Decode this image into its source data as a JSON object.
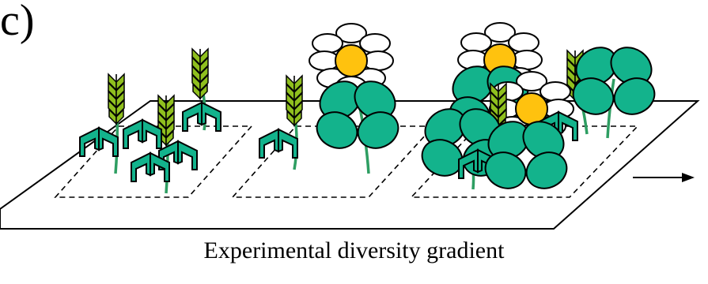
{
  "figure": {
    "panel_label": "c)",
    "caption": "Experimental diversity gradient"
  },
  "colors": {
    "leaf": "#13B38C",
    "stem": "#2E9E62",
    "wheat": "#8FBF1E",
    "flower_center": "#FFC20E",
    "outline": "#000000"
  },
  "plots": [
    {
      "plants": [
        "grass-sprout",
        "grass-sprout",
        "grass-sprout",
        "wheat",
        "wheat",
        "wheat"
      ]
    },
    {
      "plants": [
        "grass-sprout",
        "wheat",
        "daisy",
        "clover"
      ]
    },
    {
      "plants": [
        "grass-sprout",
        "grass-sprout",
        "wheat",
        "wheat",
        "daisy",
        "daisy",
        "clover",
        "clover",
        "clover"
      ]
    }
  ]
}
